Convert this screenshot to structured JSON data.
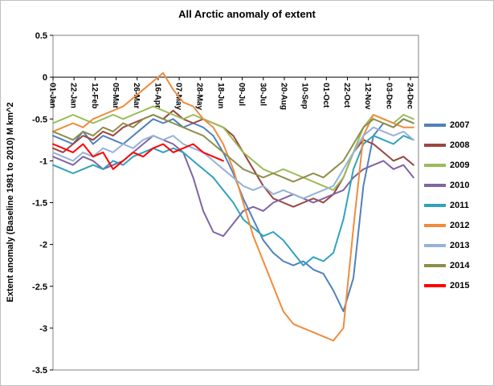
{
  "chart_data": {
    "type": "line",
    "title": "All Arctic anomaly of extent",
    "xlabel": "",
    "ylabel": "Extent anomaly (Baseline 1981 to 2010) M km^2",
    "ylim": [
      -3.5,
      0.5
    ],
    "grid": false,
    "legend_position": "right",
    "y_ticks": [
      0.5,
      0,
      -0.5,
      -1,
      -1.5,
      -2,
      -2.5,
      -3,
      -3.5
    ],
    "y_tick_labels": [
      "0.5",
      "0",
      "-0.5",
      "-1",
      "-1.5",
      "-2",
      "-2.5",
      "-3",
      "-3.5"
    ],
    "x_tick_days": [
      1,
      22,
      43,
      64,
      85,
      106,
      127,
      148,
      169,
      190,
      211,
      232,
      253,
      274,
      295,
      316,
      337,
      358
    ],
    "x_tick_labels": [
      "01-Jan",
      "22-Jan",
      "12-Feb",
      "05-Mar",
      "26-Mar",
      "16-Apr",
      "07-May",
      "28-May",
      "18-Jun",
      "09-Jul",
      "30-Jul",
      "20-Aug",
      "10-Sep",
      "01-Oct",
      "22-Oct",
      "12-Nov",
      "03-Dec",
      "24-Dec"
    ],
    "x_days": [
      1,
      11,
      21,
      31,
      41,
      51,
      61,
      71,
      81,
      91,
      101,
      111,
      121,
      131,
      141,
      151,
      161,
      171,
      181,
      191,
      201,
      211,
      221,
      231,
      241,
      251,
      261,
      271,
      281,
      291,
      301,
      311,
      321,
      331,
      341,
      351,
      361
    ],
    "series": [
      {
        "name": "2007",
        "color": "#4F81BD",
        "values": [
          -0.7,
          -0.75,
          -0.8,
          -0.65,
          -0.8,
          -0.7,
          -0.75,
          -0.8,
          -0.7,
          -0.6,
          -0.5,
          -0.55,
          -0.5,
          -0.6,
          -0.55,
          -0.6,
          -0.7,
          -0.9,
          -1.15,
          -1.45,
          -1.7,
          -1.95,
          -2.1,
          -2.2,
          -2.25,
          -2.2,
          -2.3,
          -2.35,
          -2.55,
          -2.8,
          -2.4,
          -1.3,
          -0.7,
          -0.55,
          -0.6,
          -0.5,
          -0.55
        ]
      },
      {
        "name": "2008",
        "color": "#9C4540",
        "values": [
          -0.85,
          -0.9,
          -0.8,
          -0.7,
          -0.75,
          -0.65,
          -0.7,
          -0.6,
          -0.55,
          -0.5,
          -0.45,
          -0.5,
          -0.4,
          -0.5,
          -0.55,
          -0.5,
          -0.55,
          -0.6,
          -0.7,
          -0.9,
          -1.1,
          -1.3,
          -1.45,
          -1.5,
          -1.55,
          -1.5,
          -1.45,
          -1.5,
          -1.4,
          -1.2,
          -0.9,
          -0.75,
          -0.8,
          -0.9,
          -1.0,
          -0.95,
          -1.05
        ]
      },
      {
        "name": "2009",
        "color": "#9BBB59",
        "values": [
          -0.55,
          -0.5,
          -0.45,
          -0.5,
          -0.55,
          -0.5,
          -0.45,
          -0.5,
          -0.45,
          -0.4,
          -0.35,
          -0.4,
          -0.45,
          -0.5,
          -0.45,
          -0.5,
          -0.55,
          -0.6,
          -0.75,
          -0.9,
          -1.0,
          -1.1,
          -1.15,
          -1.1,
          -1.15,
          -1.2,
          -1.25,
          -1.3,
          -1.35,
          -1.2,
          -0.9,
          -0.6,
          -0.45,
          -0.5,
          -0.55,
          -0.45,
          -0.5
        ]
      },
      {
        "name": "2010",
        "color": "#8064A2",
        "values": [
          -0.95,
          -1.0,
          -1.05,
          -0.95,
          -1.0,
          -1.1,
          -1.05,
          -1.0,
          -0.9,
          -0.8,
          -0.7,
          -0.75,
          -0.8,
          -0.9,
          -1.2,
          -1.6,
          -1.85,
          -1.9,
          -1.75,
          -1.6,
          -1.55,
          -1.6,
          -1.5,
          -1.45,
          -1.4,
          -1.45,
          -1.5,
          -1.45,
          -1.4,
          -1.35,
          -1.2,
          -1.1,
          -1.05,
          -1.0,
          -1.1,
          -1.05,
          -1.2
        ]
      },
      {
        "name": "2011",
        "color": "#31A2BC",
        "values": [
          -1.05,
          -1.1,
          -1.15,
          -1.1,
          -1.05,
          -1.1,
          -1.0,
          -1.05,
          -0.95,
          -0.9,
          -0.85,
          -0.9,
          -0.85,
          -0.9,
          -1.0,
          -1.1,
          -1.2,
          -1.35,
          -1.5,
          -1.7,
          -1.8,
          -1.9,
          -1.85,
          -1.95,
          -2.1,
          -2.25,
          -2.15,
          -2.2,
          -2.1,
          -1.7,
          -1.1,
          -0.8,
          -0.7,
          -0.75,
          -0.8,
          -0.7,
          -0.75
        ]
      },
      {
        "name": "2012",
        "color": "#EF8C3D",
        "values": [
          -0.65,
          -0.6,
          -0.55,
          -0.6,
          -0.5,
          -0.45,
          -0.4,
          -0.35,
          -0.25,
          -0.15,
          -0.05,
          0.05,
          -0.15,
          -0.3,
          -0.35,
          -0.5,
          -0.6,
          -0.8,
          -1.1,
          -1.5,
          -1.9,
          -2.2,
          -2.5,
          -2.8,
          -2.95,
          -3.0,
          -3.05,
          -3.1,
          -3.15,
          -3.0,
          -1.8,
          -0.7,
          -0.45,
          -0.5,
          -0.55,
          -0.6,
          -0.6
        ]
      },
      {
        "name": "2013",
        "color": "#95B3D7",
        "values": [
          -0.9,
          -0.95,
          -1.0,
          -0.9,
          -0.95,
          -0.85,
          -0.9,
          -0.8,
          -0.85,
          -0.75,
          -0.7,
          -0.75,
          -0.7,
          -0.8,
          -0.85,
          -0.9,
          -1.0,
          -1.1,
          -1.2,
          -1.3,
          -1.35,
          -1.3,
          -1.4,
          -1.35,
          -1.4,
          -1.45,
          -1.4,
          -1.35,
          -1.3,
          -1.1,
          -0.9,
          -0.7,
          -0.6,
          -0.65,
          -0.7,
          -0.65,
          -0.75
        ]
      },
      {
        "name": "2014",
        "color": "#8E8E4A",
        "values": [
          -0.65,
          -0.7,
          -0.75,
          -0.65,
          -0.7,
          -0.6,
          -0.65,
          -0.55,
          -0.6,
          -0.5,
          -0.45,
          -0.5,
          -0.55,
          -0.6,
          -0.65,
          -0.7,
          -0.8,
          -0.9,
          -1.0,
          -1.1,
          -1.15,
          -1.2,
          -1.15,
          -1.2,
          -1.25,
          -1.2,
          -1.15,
          -1.2,
          -1.1,
          -1.0,
          -0.8,
          -0.6,
          -0.5,
          -0.55,
          -0.6,
          -0.5,
          -0.55
        ]
      },
      {
        "name": "2015",
        "color": "#FF0000",
        "values": [
          -0.8,
          -0.85,
          -0.9,
          -0.8,
          -0.95,
          -0.9,
          -1.1,
          -1.0,
          -0.9,
          -0.95,
          -0.85,
          -0.8,
          -0.9,
          -0.85,
          -0.8,
          -0.9,
          -0.95,
          -1.0,
          null,
          null,
          null,
          null,
          null,
          null,
          null,
          null,
          null,
          null,
          null,
          null,
          null,
          null,
          null,
          null,
          null,
          null,
          null
        ]
      }
    ]
  }
}
